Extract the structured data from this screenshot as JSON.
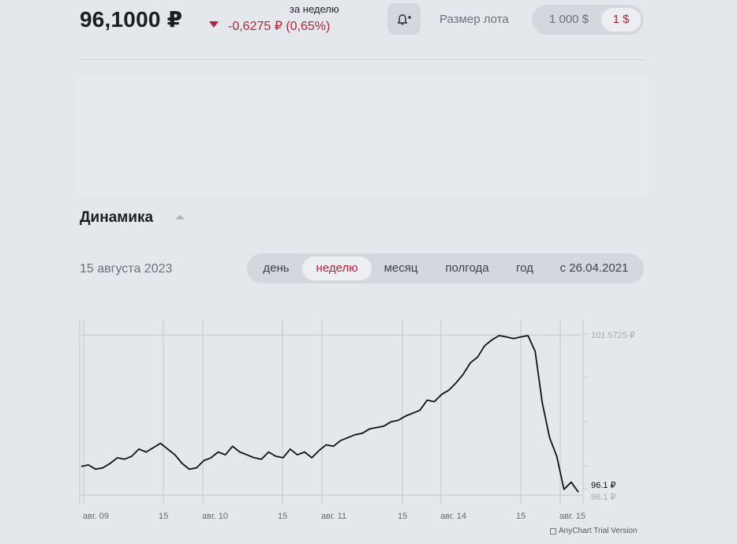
{
  "header": {
    "price": "96,1000 ₽",
    "change": "-0,6275 ₽ (0,65%)",
    "period_caption": "за неделю",
    "lot_label": "Размер лота",
    "lot_options": [
      "1 000 $",
      "1 $"
    ],
    "lot_selected": "1 $"
  },
  "section": {
    "title": "Динамика",
    "date": "15 августа 2023",
    "range_tabs": [
      "день",
      "неделю",
      "месяц",
      "полгода",
      "год",
      "с 26.04.2021"
    ],
    "active_tab": "неделю"
  },
  "colors": {
    "accent": "#b5243b",
    "line": "#111111",
    "grid": "#c3c7cd"
  },
  "icons": {
    "alert": "bell-plus-icon",
    "direction": "triangle-down-icon"
  },
  "chart_data": {
    "type": "line",
    "x_tick_labels": [
      "авг. 09",
      "15",
      "авг. 10",
      "15",
      "авг. 11",
      "15",
      "авг. 14",
      "15",
      "авг. 15"
    ],
    "y_tick_labels": [
      "101.5725 ₽",
      "96.1 ₽"
    ],
    "ylim": [
      95.7,
      102.1
    ],
    "last_value_label": "96.1 ₽",
    "series": [
      {
        "values": [
          97.0,
          97.05,
          96.9,
          96.95,
          97.1,
          97.3,
          97.25,
          97.35,
          97.6,
          97.5,
          97.65,
          97.8,
          97.6,
          97.4,
          97.1,
          96.9,
          96.95,
          97.2,
          97.3,
          97.5,
          97.4,
          97.7,
          97.5,
          97.4,
          97.3,
          97.25,
          97.5,
          97.35,
          97.3,
          97.6,
          97.4,
          97.5,
          97.3,
          97.55,
          97.75,
          97.7,
          97.9,
          98.0,
          98.1,
          98.15,
          98.3,
          98.35,
          98.4,
          98.55,
          98.6,
          98.75,
          98.85,
          98.95,
          99.3,
          99.25,
          99.5,
          99.65,
          99.9,
          100.2,
          100.6,
          100.8,
          101.2,
          101.4,
          101.55,
          101.5,
          101.45,
          101.5,
          101.55,
          101.0,
          99.2,
          98.0,
          97.35,
          96.2,
          96.45,
          96.1
        ]
      }
    ]
  }
}
